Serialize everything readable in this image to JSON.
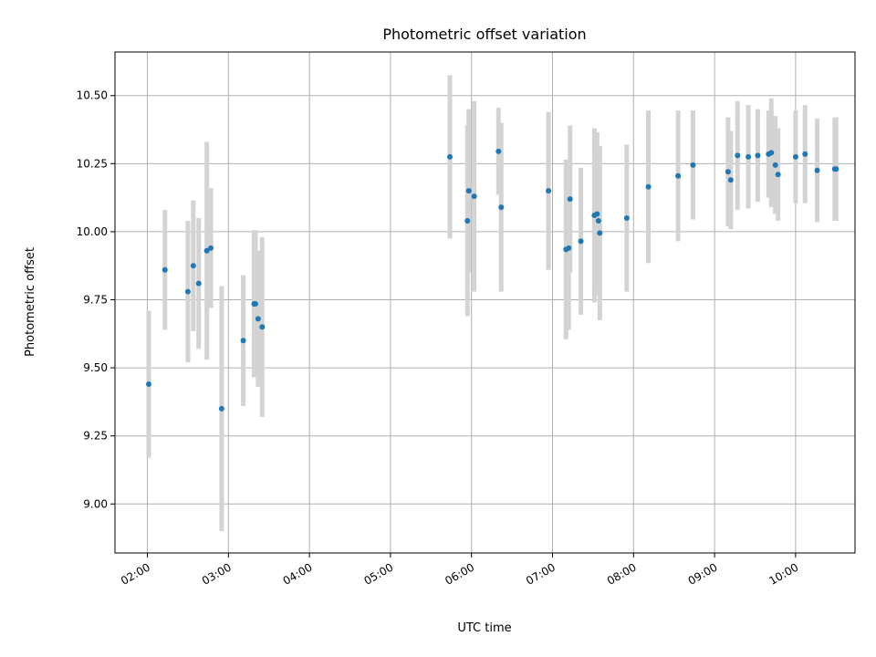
{
  "chart_data": {
    "type": "scatter",
    "title": "Photometric offset variation",
    "xlabel": "UTC time",
    "ylabel": "Photometric offset",
    "x_ticks": [
      "02:00",
      "03:00",
      "04:00",
      "05:00",
      "06:00",
      "07:00",
      "08:00",
      "09:00",
      "10:00"
    ],
    "y_ticks": [
      "9.00",
      "9.25",
      "9.50",
      "9.75",
      "10.00",
      "10.25",
      "10.50"
    ],
    "ylim": [
      8.82,
      10.66
    ],
    "xlim": [
      "01:36",
      "10:44"
    ],
    "grid": true,
    "colors": {
      "points": "#1f77b4",
      "errorbars": "#d3d3d3",
      "grid": "#b0b0b0"
    },
    "series": [
      {
        "x": [
          "02:01",
          "02:13",
          "02:30",
          "02:34",
          "02:38",
          "02:44",
          "02:47",
          "02:55",
          "03:11",
          "03:19",
          "03:20",
          "03:22",
          "03:25",
          "05:44",
          "05:57",
          "05:58",
          "06:02",
          "06:20",
          "06:22",
          "06:57",
          "07:10",
          "07:12",
          "07:13",
          "07:21",
          "07:31",
          "07:33",
          "07:34",
          "07:35",
          "07:55",
          "08:11",
          "08:33",
          "08:44",
          "09:10",
          "09:12",
          "09:17",
          "09:25",
          "09:32",
          "09:40",
          "09:42",
          "09:45",
          "09:47",
          "10:00",
          "10:07",
          "10:16",
          "10:29",
          "10:30"
        ],
        "y": [
          9.44,
          9.86,
          9.78,
          9.875,
          9.81,
          9.93,
          9.94,
          9.35,
          9.6,
          9.735,
          9.735,
          9.68,
          9.65,
          10.275,
          10.04,
          10.15,
          10.13,
          10.295,
          10.09,
          10.15,
          9.935,
          9.94,
          10.12,
          9.965,
          10.06,
          10.065,
          10.04,
          9.995,
          10.05,
          10.165,
          10.205,
          10.245,
          10.22,
          10.19,
          10.28,
          10.275,
          10.28,
          10.285,
          10.29,
          10.245,
          10.21,
          10.275,
          10.285,
          10.225,
          10.23,
          10.23
        ],
        "yerr": [
          0.27,
          0.22,
          0.26,
          0.24,
          0.24,
          0.4,
          0.22,
          0.45,
          0.24,
          0.27,
          0.27,
          0.25,
          0.33,
          0.3,
          0.35,
          0.3,
          0.35,
          0.16,
          0.31,
          0.29,
          0.33,
          0.3,
          0.27,
          0.27,
          0.32,
          0.3,
          0.26,
          0.32,
          0.27,
          0.28,
          0.24,
          0.2,
          0.2,
          0.18,
          0.2,
          0.19,
          0.17,
          0.16,
          0.2,
          0.18,
          0.17,
          0.17,
          0.18,
          0.19,
          0.19,
          0.19
        ]
      }
    ]
  }
}
